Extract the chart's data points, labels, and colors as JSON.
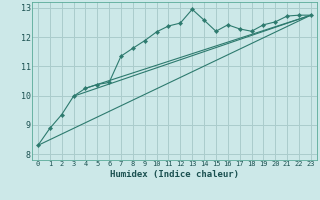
{
  "xlabel": "Humidex (Indice chaleur)",
  "bg_color": "#cce8e8",
  "grid_color": "#aacccc",
  "line_color": "#2d7a6e",
  "xlim": [
    -0.5,
    23.5
  ],
  "ylim": [
    7.8,
    13.2
  ],
  "xticks": [
    0,
    1,
    2,
    3,
    4,
    5,
    6,
    7,
    8,
    9,
    10,
    11,
    12,
    13,
    14,
    15,
    16,
    17,
    18,
    19,
    20,
    21,
    22,
    23
  ],
  "yticks": [
    8,
    9,
    10,
    11,
    12,
    13
  ],
  "main_series": [
    [
      0,
      8.3
    ],
    [
      1,
      8.88
    ],
    [
      2,
      9.35
    ],
    [
      3,
      9.98
    ],
    [
      4,
      10.25
    ],
    [
      5,
      10.38
    ],
    [
      6,
      10.45
    ],
    [
      7,
      11.35
    ],
    [
      8,
      11.62
    ],
    [
      9,
      11.88
    ],
    [
      10,
      12.18
    ],
    [
      11,
      12.38
    ],
    [
      12,
      12.48
    ],
    [
      13,
      12.95
    ],
    [
      14,
      12.58
    ],
    [
      15,
      12.2
    ],
    [
      16,
      12.42
    ],
    [
      17,
      12.28
    ],
    [
      18,
      12.2
    ],
    [
      19,
      12.42
    ],
    [
      20,
      12.52
    ],
    [
      21,
      12.72
    ],
    [
      22,
      12.75
    ],
    [
      23,
      12.75
    ]
  ],
  "reg_lines": [
    [
      [
        0,
        8.3
      ],
      [
        23,
        12.75
      ]
    ],
    [
      [
        3,
        9.98
      ],
      [
        23,
        12.75
      ]
    ],
    [
      [
        4,
        10.25
      ],
      [
        23,
        12.75
      ]
    ]
  ]
}
